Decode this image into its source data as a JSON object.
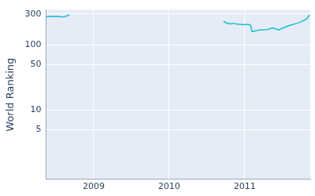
{
  "chart_data": {
    "type": "line",
    "y_label": "World Ranking",
    "x": [
      2008.37,
      2008.42,
      2008.47,
      2008.52,
      2008.57,
      2008.62,
      2008.66,
      2008.68,
      2009.5,
      2010.72,
      2010.77,
      2010.82,
      2010.86,
      2010.9,
      2011.0,
      2011.05,
      2011.08,
      2011.1,
      2011.2,
      2011.3,
      2011.37,
      2011.45,
      2011.5,
      2011.6,
      2011.7,
      2011.78,
      2011.83,
      2011.86
    ],
    "values": [
      270,
      275,
      272,
      276,
      270,
      272,
      285,
      290,
      null,
      230,
      215,
      210,
      215,
      208,
      205,
      207,
      200,
      160,
      170,
      172,
      183,
      170,
      180,
      200,
      215,
      235,
      255,
      290
    ],
    "color": "#17becf",
    "log": "y",
    "xlim": [
      2008.37,
      2011.87
    ],
    "xticks": [
      2009,
      2010,
      2011
    ],
    "ylim": [
      0.86,
      345
    ],
    "yticks": [
      5,
      10,
      50,
      100,
      300
    ],
    "grid": true
  }
}
